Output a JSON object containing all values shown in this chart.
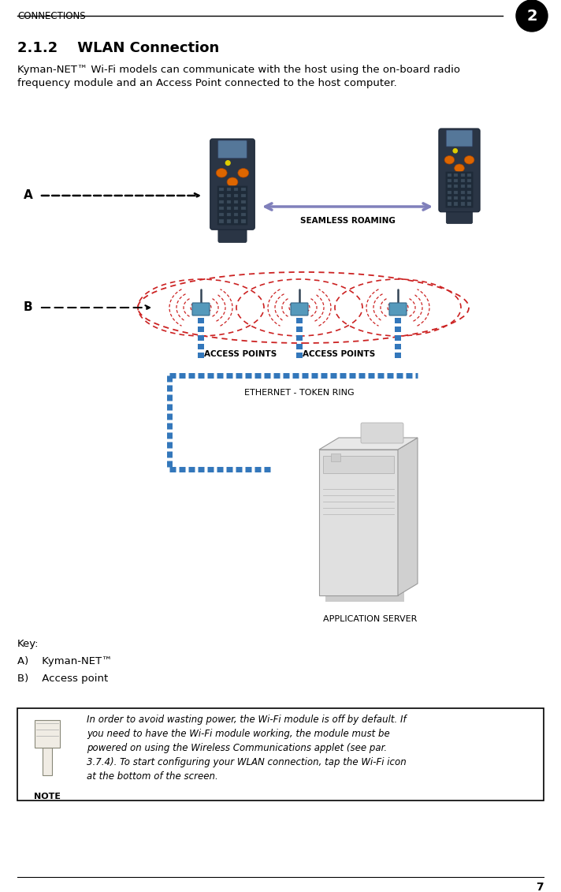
{
  "header_text": "CONNECTIONS",
  "chapter_num": "2",
  "section_title": "2.1.2    WLAN Connection",
  "body_text": "Kyman-NET™ Wi-Fi models can communicate with the host using the on-board radio\nfrequency module and an Access Point connected to the host computer.",
  "key_title": "Key:",
  "key_a": "A)    Kyman-NET™",
  "key_b": "B)    Access point",
  "note_label": "NOTE",
  "note_text": "In order to avoid wasting power, the Wi-Fi module is off by default. If\nyou need to have the Wi-Fi module working, the module must be\npowered on using the Wireless Communications applet (see par.\n3.7.4). To start configuring your WLAN connection, tap the Wi-Fi icon\nat the bottom of the screen.",
  "page_num": "7",
  "seamless_roaming": "SEAMLESS ROAMING",
  "access_points1": "ACCESS POINTS",
  "access_points2": "ACCESS POINTS",
  "ethernet_label": "ETHERNET - TOKEN RING",
  "app_server_label": "APPLICATION SERVER",
  "bg_color": "#ffffff",
  "text_color": "#000000",
  "header_line_color": "#000000",
  "footer_line_color": "#000000",
  "note_border_color": "#000000",
  "arrow_color_purple": "#8080bb",
  "dashed_arrow_color": "#000000",
  "red_dashed_color": "#cc2222",
  "blue_dotted_color": "#3377bb"
}
